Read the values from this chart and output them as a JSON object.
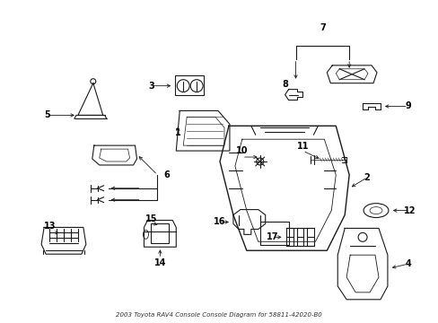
{
  "title": "2003 Toyota RAV4 Console Console Diagram for 58811-42020-B0",
  "background_color": "#ffffff",
  "line_color": "#1a1a1a",
  "text_color": "#000000",
  "fig_width": 4.89,
  "fig_height": 3.6,
  "dpi": 100
}
